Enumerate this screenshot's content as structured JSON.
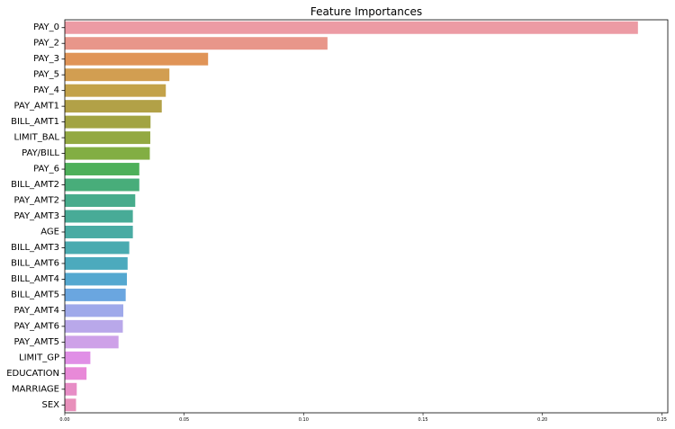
{
  "chart_data": {
    "type": "bar",
    "orientation": "horizontal",
    "title": "Feature Importances",
    "xlabel": "",
    "ylabel": "",
    "xlim": [
      0,
      0.2525
    ],
    "x_ticks": [
      "0.00",
      "0.05",
      "0.10",
      "0.15",
      "0.20",
      "0.25"
    ],
    "grid": false,
    "categories": [
      "PAY_0",
      "PAY_2",
      "PAY_3",
      "PAY_5",
      "PAY_4",
      "PAY_AMT1",
      "BILL_AMT1",
      "LIMIT_BAL",
      "PAY/BILL",
      "PAY_6",
      "BILL_AMT2",
      "PAY_AMT2",
      "PAY_AMT3",
      "AGE",
      "BILL_AMT3",
      "BILL_AMT6",
      "BILL_AMT4",
      "BILL_AMT5",
      "PAY_AMT4",
      "PAY_AMT6",
      "PAY_AMT5",
      "LIMIT_GP",
      "EDUCATION",
      "MARRIAGE",
      "SEX"
    ],
    "values": [
      0.24,
      0.11,
      0.06,
      0.0438,
      0.0423,
      0.0406,
      0.0359,
      0.0358,
      0.0356,
      0.0312,
      0.0312,
      0.0295,
      0.0285,
      0.0285,
      0.027,
      0.0263,
      0.026,
      0.0255,
      0.0245,
      0.0243,
      0.0225,
      0.0107,
      0.0091,
      0.005,
      0.0047
    ],
    "colors": [
      "#ec9ba4",
      "#e8968a",
      "#e09457",
      "#d29e51",
      "#c3a249",
      "#b2a147",
      "#a2a442",
      "#93a942",
      "#82ae43",
      "#4eb05a",
      "#48ad7a",
      "#47ac8c",
      "#48ab97",
      "#49aba3",
      "#4aabb0",
      "#4caabd",
      "#54a8d0",
      "#6aa6e0",
      "#9fa9ea",
      "#b9a8ea",
      "#cea1e8",
      "#e08fe6",
      "#e889d8",
      "#e78dc6",
      "#e890bb"
    ]
  }
}
